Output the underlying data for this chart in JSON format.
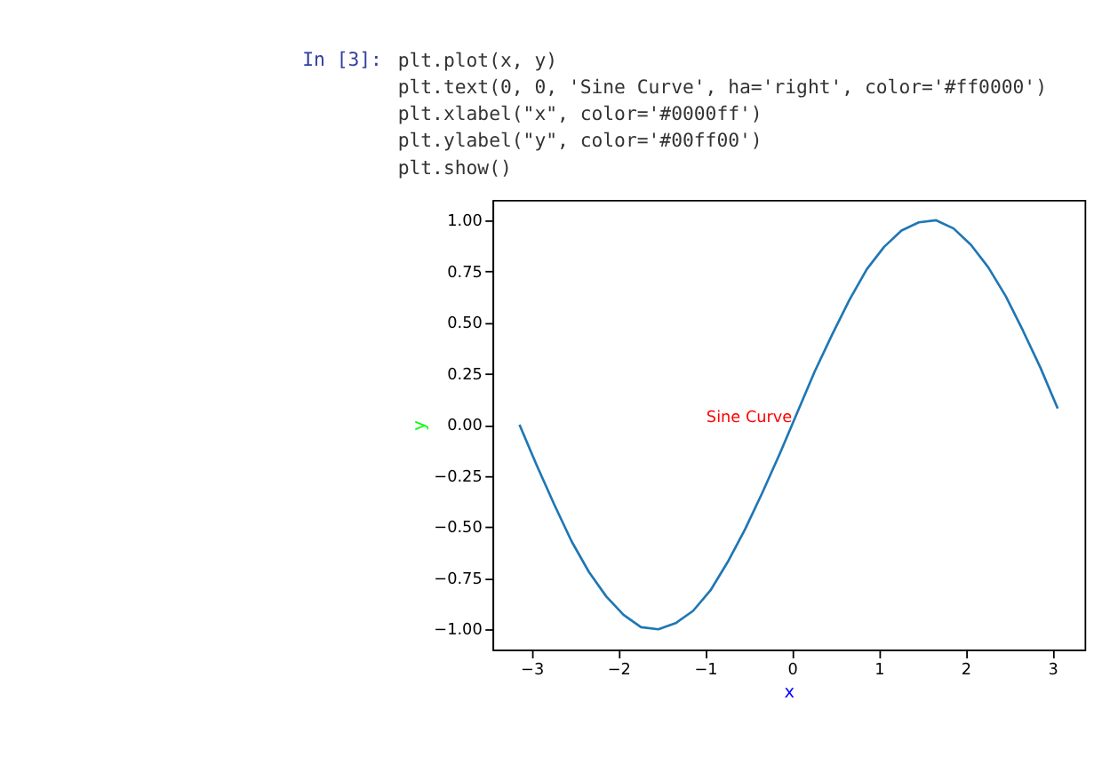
{
  "chart_data": {
    "type": "line",
    "xlabel": "x",
    "ylabel": "y",
    "annotations": [
      "In [3]:",
      "plt.plot(x, y)",
      "plt.text(0, 0, 'Sine Curve', ha='right', color='#ff0000')",
      "plt.xlabel(\"x\", color='#0000ff')",
      "plt.ylabel(\"y\", color='#00ff00')",
      "plt.show()",
      {
        "text": "Sine Curve",
        "x": 0,
        "y": 0
      }
    ],
    "series": [
      {
        "color": "#1f77b4",
        "x": [
          -3.14,
          -2.94,
          -2.74,
          -2.54,
          -2.34,
          -2.14,
          -1.94,
          -1.74,
          -1.54,
          -1.34,
          -1.14,
          -0.94,
          -0.74,
          -0.54,
          -0.34,
          -0.14,
          0.06,
          0.26,
          0.46,
          0.66,
          0.86,
          1.06,
          1.26,
          1.46,
          1.66,
          1.86,
          2.06,
          2.26,
          2.46,
          2.66,
          2.86,
          3.06
        ],
        "values": [
          0.0,
          -0.2,
          -0.39,
          -0.57,
          -0.72,
          -0.84,
          -0.93,
          -0.99,
          -1.0,
          -0.97,
          -0.91,
          -0.81,
          -0.67,
          -0.51,
          -0.33,
          -0.14,
          0.06,
          0.26,
          0.44,
          0.61,
          0.76,
          0.87,
          0.95,
          0.99,
          1.0,
          0.96,
          0.88,
          0.77,
          0.63,
          0.46,
          0.28,
          0.08
        ]
      }
    ],
    "xlim": [
      -3.45,
      3.37
    ],
    "ylim": [
      -1.1,
      1.1
    ],
    "xticks": [
      {
        "value": -3,
        "label": "−3"
      },
      {
        "value": -2,
        "label": "−2"
      },
      {
        "value": -1,
        "label": "−1"
      },
      0,
      1,
      2,
      3
    ],
    "yticks": [
      {
        "value": -1,
        "label": "−1.00"
      },
      {
        "value": -0.75,
        "label": "−0.75"
      },
      {
        "value": -0.5,
        "label": "−0.50"
      },
      {
        "value": -0.25,
        "label": "−0.25"
      },
      {
        "value": 0,
        "label": "0.00"
      },
      {
        "value": 0.25,
        "label": "0.25"
      },
      {
        "value": 0.5,
        "label": "0.50"
      },
      {
        "value": 0.75,
        "label": "0.75"
      },
      {
        "value": 1,
        "label": "1.00"
      }
    ],
    "grid": false,
    "marker": "none",
    "line_style": "solid"
  }
}
